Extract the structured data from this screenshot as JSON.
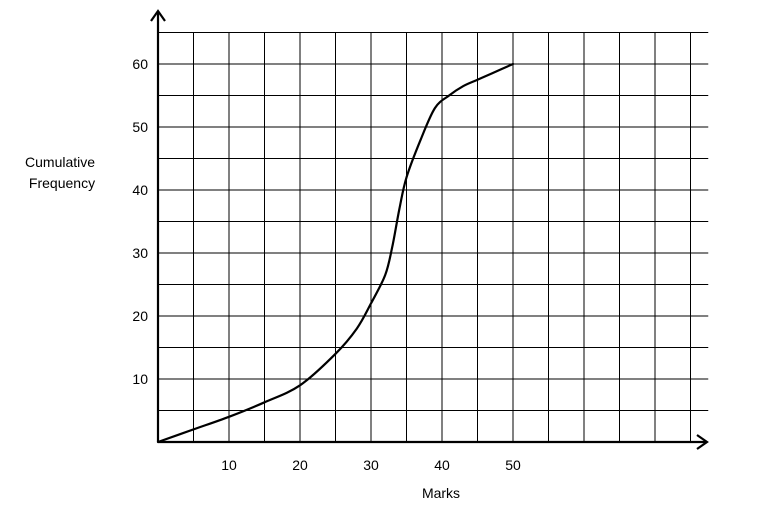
{
  "chart_data": {
    "type": "line",
    "title": "",
    "xlabel": "Marks",
    "ylabel_lines": [
      "Cumulative",
      "Frequency"
    ],
    "xlim": [
      0,
      77.5
    ],
    "ylim": [
      0,
      65
    ],
    "x_ticks": [
      10,
      20,
      30,
      40,
      50
    ],
    "y_ticks": [
      10,
      20,
      30,
      40,
      50,
      60
    ],
    "grid": true,
    "line_color": "#000000",
    "grid_color": "#000000",
    "series": [
      {
        "x": [
          0,
          5,
          10,
          15,
          20,
          25,
          28,
          30,
          32,
          33,
          34,
          35,
          37,
          39,
          41,
          43,
          45,
          47,
          50
        ],
        "y": [
          0,
          2,
          4,
          6.3,
          9,
          14,
          18,
          22,
          26.5,
          31,
          37,
          42,
          48,
          53,
          55,
          56.5,
          57.5,
          58.5,
          60
        ]
      }
    ]
  }
}
